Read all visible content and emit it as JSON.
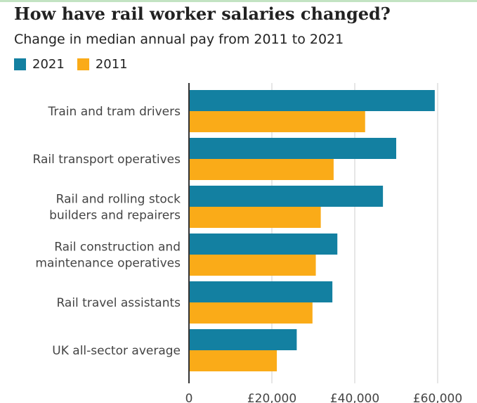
{
  "title": "How have rail worker salaries changed?",
  "subtitle": "Change in median annual pay from 2011 to 2021",
  "legend": [
    {
      "label": "2021",
      "color": "#1380A1"
    },
    {
      "label": "2011",
      "color": "#FAAB18"
    }
  ],
  "chart_data": {
    "type": "bar",
    "orientation": "horizontal",
    "categories": [
      [
        "Train and tram drivers"
      ],
      [
        "Rail transport operatives"
      ],
      [
        "Rail and rolling stock",
        "builders and repairers"
      ],
      [
        "Rail construction and",
        "maintenance operatives"
      ],
      [
        "Rail travel assistants"
      ],
      [
        "UK all-sector average"
      ]
    ],
    "series": [
      {
        "name": "2021",
        "color": "#1380A1",
        "values": [
          59300,
          50000,
          46800,
          35800,
          34600,
          26000
        ]
      },
      {
        "name": "2011",
        "color": "#FAAB18",
        "values": [
          42500,
          34900,
          31800,
          30600,
          29800,
          21200
        ]
      }
    ],
    "xlim": [
      0,
      60000
    ],
    "xticks": [
      0,
      20000,
      40000,
      60000
    ],
    "xtick_labels": [
      "0",
      "£20,000",
      "£40,000",
      "£60,000"
    ],
    "grid": true,
    "legend_position": "top-left"
  }
}
